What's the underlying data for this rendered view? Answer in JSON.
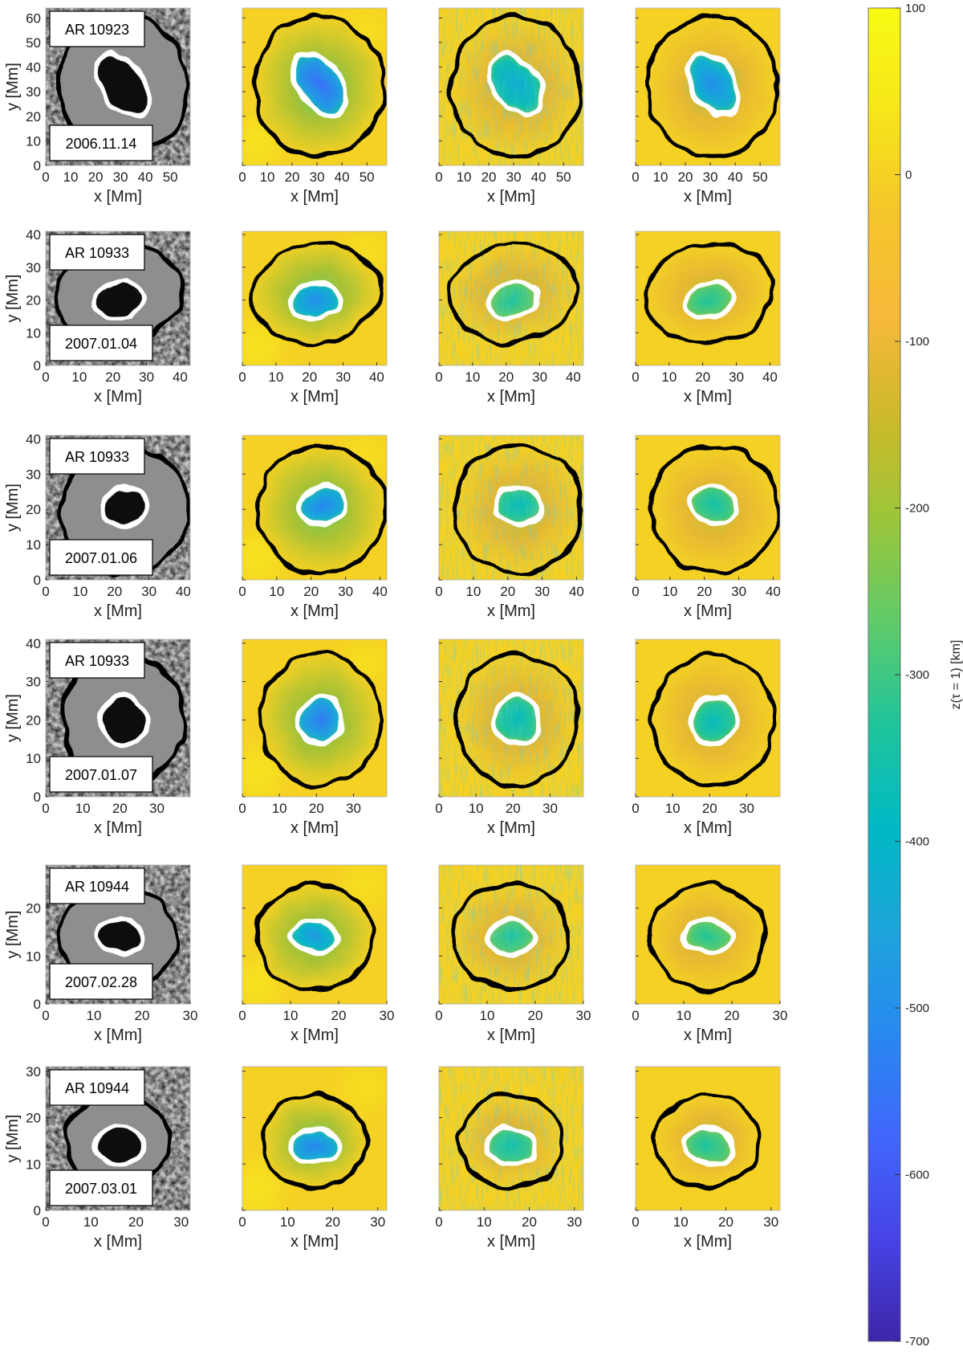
{
  "chart_data": {
    "type": "heatmap",
    "title": "",
    "layout": {
      "rows": 6,
      "columns": 4
    },
    "panel_xlabel": "x [Mm]",
    "panel_ylabel": "y [Mm]",
    "colorbar": {
      "label": "z(τ = 1) [km]",
      "range": [
        -700,
        100
      ],
      "ticks": [
        100,
        0,
        -100,
        -200,
        -300,
        -400,
        -500,
        -600,
        -700
      ],
      "tick_labels": [
        "100",
        "0",
        "-100",
        "-200",
        "-300",
        "-400",
        "-500",
        "-600",
        "-700"
      ],
      "colormap": [
        "#3e26a8",
        "#4743e7",
        "#4067fb",
        "#2789f0",
        "#1ea4db",
        "#00b9c5",
        "#1ec49c",
        "#5fcb6a",
        "#9bc63a",
        "#ccb929",
        "#f7b93a",
        "#f5c52a",
        "#f6e61a",
        "#f9fb14"
      ],
      "colormap_name": "parula"
    },
    "contours": {
      "umbra_boundary_color": "#ffffff",
      "penumbra_boundary_color": "#000000"
    },
    "rows": [
      {
        "region": "AR 10923",
        "date": "2006.11.14",
        "xlim": [
          0,
          58
        ],
        "ylim": [
          0,
          64
        ],
        "xticks": [
          0,
          10,
          20,
          30,
          40,
          50
        ],
        "yticks": [
          0,
          10,
          20,
          30,
          40,
          50,
          60
        ],
        "umbra_center_Mm": [
          31,
          33
        ],
        "umbra_radii_Mm": [
          8.5,
          14
        ],
        "umbra_tilt_deg": 35,
        "penumbra_center_Mm": [
          31,
          32
        ],
        "penumbra_radii_Mm": [
          26,
          28.5
        ],
        "penumbra_tilt_deg": 0,
        "min_depth_km": [
          -560,
          -430,
          -500
        ]
      },
      {
        "region": "AR 10933",
        "date": "2007.01.04",
        "xlim": [
          0,
          43
        ],
        "ylim": [
          0,
          41
        ],
        "xticks": [
          0,
          10,
          20,
          30,
          40
        ],
        "yticks": [
          0,
          10,
          20,
          30,
          40
        ],
        "umbra_center_Mm": [
          22,
          20
        ],
        "umbra_radii_Mm": [
          7.5,
          5.2
        ],
        "umbra_tilt_deg": 10,
        "penumbra_center_Mm": [
          22,
          22
        ],
        "penumbra_radii_Mm": [
          19,
          15
        ],
        "penumbra_tilt_deg": 8,
        "min_depth_km": [
          -500,
          -330,
          -330
        ]
      },
      {
        "region": "AR 10933",
        "date": "2007.01.06",
        "xlim": [
          0,
          42
        ],
        "ylim": [
          0,
          41
        ],
        "xticks": [
          0,
          10,
          20,
          30,
          40
        ],
        "yticks": [
          0,
          10,
          20,
          30,
          40
        ],
        "umbra_center_Mm": [
          23,
          21
        ],
        "umbra_radii_Mm": [
          6.8,
          5.5
        ],
        "umbra_tilt_deg": 5,
        "penumbra_center_Mm": [
          23,
          20
        ],
        "penumbra_radii_Mm": [
          18.5,
          18
        ],
        "penumbra_tilt_deg": 0,
        "min_depth_km": [
          -520,
          -380,
          -350
        ]
      },
      {
        "region": "AR 10933",
        "date": "2007.01.07",
        "xlim": [
          0,
          39
        ],
        "ylim": [
          0,
          41
        ],
        "xticks": [
          0,
          10,
          20,
          30
        ],
        "yticks": [
          0,
          10,
          20,
          30,
          40
        ],
        "umbra_center_Mm": [
          21,
          20
        ],
        "umbra_radii_Mm": [
          6,
          6.3
        ],
        "umbra_tilt_deg": 0,
        "penumbra_center_Mm": [
          21,
          20
        ],
        "penumbra_radii_Mm": [
          16.5,
          17
        ],
        "penumbra_tilt_deg": 0,
        "min_depth_km": [
          -540,
          -380,
          -380
        ]
      },
      {
        "region": "AR 10944",
        "date": "2007.02.28",
        "xlim": [
          0,
          30
        ],
        "ylim": [
          0,
          29
        ],
        "xticks": [
          0,
          10,
          20,
          30
        ],
        "yticks": [
          0,
          10,
          20
        ],
        "umbra_center_Mm": [
          15,
          14
        ],
        "umbra_radii_Mm": [
          5,
          3.6
        ],
        "umbra_tilt_deg": -10,
        "penumbra_center_Mm": [
          15,
          14
        ],
        "penumbra_radii_Mm": [
          12,
          11
        ],
        "penumbra_tilt_deg": 0,
        "min_depth_km": [
          -480,
          -340,
          -330
        ]
      },
      {
        "region": "AR 10944",
        "date": "2007.03.01",
        "xlim": [
          0,
          32
        ],
        "ylim": [
          0,
          31
        ],
        "xticks": [
          0,
          10,
          20,
          30
        ],
        "yticks": [
          0,
          10,
          20,
          30
        ],
        "umbra_center_Mm": [
          16,
          14
        ],
        "umbra_radii_Mm": [
          5.5,
          3.8
        ],
        "umbra_tilt_deg": -5,
        "penumbra_center_Mm": [
          16,
          15
        ],
        "penumbra_radii_Mm": [
          11.5,
          10
        ],
        "penumbra_tilt_deg": 0,
        "min_depth_km": [
          -520,
          -360,
          -340
        ]
      }
    ]
  }
}
